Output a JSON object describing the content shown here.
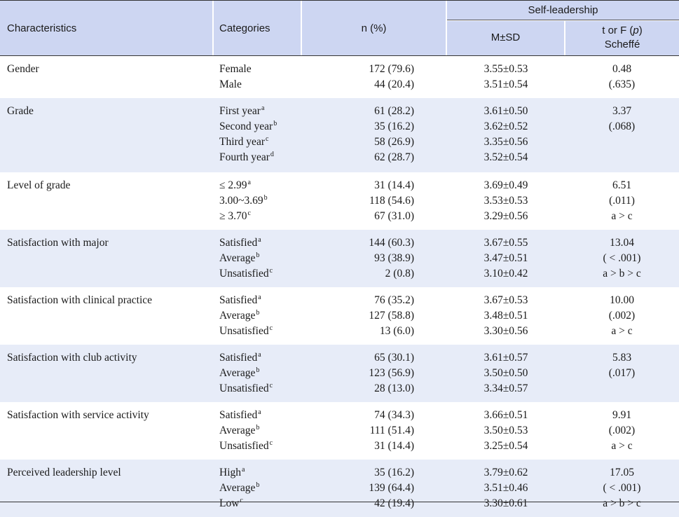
{
  "header": {
    "characteristics": "Characteristics",
    "categories": "Categories",
    "n_pct": "n (%)",
    "self_leadership": "Self-leadership",
    "msd": "M±SD",
    "t_or_f_pre": "t or F (",
    "t_or_f_p": "p",
    "t_or_f_post": ")",
    "scheffe": "Scheffé"
  },
  "groups": [
    {
      "characteristic": "Gender",
      "rows": [
        {
          "category": "Female",
          "sup": "",
          "n": "172 (79.6)",
          "msd": "3.55±0.53",
          "stat": "0.48"
        },
        {
          "category": "Male",
          "sup": "",
          "n": "44 (20.4)",
          "msd": "3.51±0.54",
          "stat": "(.635)"
        }
      ]
    },
    {
      "characteristic": "Grade",
      "rows": [
        {
          "category": "First year",
          "sup": "a",
          "n": "61 (28.2)",
          "msd": "3.61±0.50",
          "stat": "3.37"
        },
        {
          "category": "Second year",
          "sup": "b",
          "n": "35 (16.2)",
          "msd": "3.62±0.52",
          "stat": "(.068)"
        },
        {
          "category": "Third year",
          "sup": "c",
          "n": "58 (26.9)",
          "msd": "3.35±0.56",
          "stat": ""
        },
        {
          "category": "Fourth year",
          "sup": "d",
          "n": "62 (28.7)",
          "msd": "3.52±0.54",
          "stat": ""
        }
      ]
    },
    {
      "characteristic": "Level of grade",
      "rows": [
        {
          "category": "≤ 2.99",
          "sup": "a",
          "n": "31 (14.4)",
          "msd": "3.69±0.49",
          "stat": "6.51"
        },
        {
          "category": "3.00~3.69",
          "sup": "b",
          "n": "118 (54.6)",
          "msd": "3.53±0.53",
          "stat": "(.011)"
        },
        {
          "category": "≥ 3.70",
          "sup": "c",
          "n": "67 (31.0)",
          "msd": "3.29±0.56",
          "stat": "a > c"
        }
      ]
    },
    {
      "characteristic": "Satisfaction with major",
      "rows": [
        {
          "category": "Satisfied",
          "sup": "a",
          "n": "144 (60.3)",
          "msd": "3.67±0.55",
          "stat": "13.04"
        },
        {
          "category": "Average",
          "sup": "b",
          "n": "93 (38.9)",
          "msd": "3.47±0.51",
          "stat": "( < .001)"
        },
        {
          "category": "Unsatisfied",
          "sup": "c",
          "n": "2 (0.8)",
          "msd": "3.10±0.42",
          "stat": "a > b > c"
        }
      ]
    },
    {
      "characteristic": "Satisfaction with clinical practice",
      "rows": [
        {
          "category": "Satisfied",
          "sup": "a",
          "n": "76 (35.2)",
          "msd": "3.67±0.53",
          "stat": "10.00"
        },
        {
          "category": "Average",
          "sup": "b",
          "n": "127 (58.8)",
          "msd": "3.48±0.51",
          "stat": "(.002)"
        },
        {
          "category": "Unsatisfied",
          "sup": "c",
          "n": "13 (6.0)",
          "msd": "3.30±0.56",
          "stat": "a > c"
        }
      ]
    },
    {
      "characteristic": "Satisfaction with club activity",
      "rows": [
        {
          "category": "Satisfied",
          "sup": "a",
          "n": "65 (30.1)",
          "msd": "3.61±0.57",
          "stat": "5.83"
        },
        {
          "category": "Average",
          "sup": "b",
          "n": "123 (56.9)",
          "msd": "3.50±0.50",
          "stat": "(.017)"
        },
        {
          "category": "Unsatisfied",
          "sup": "c",
          "n": "28 (13.0)",
          "msd": "3.34±0.57",
          "stat": ""
        }
      ]
    },
    {
      "characteristic": "Satisfaction with service activity",
      "rows": [
        {
          "category": "Satisfied",
          "sup": "a",
          "n": "74 (34.3)",
          "msd": "3.66±0.51",
          "stat": "9.91"
        },
        {
          "category": "Average",
          "sup": "b",
          "n": "111 (51.4)",
          "msd": "3.50±0.53",
          "stat": "(.002)"
        },
        {
          "category": "Unsatisfied",
          "sup": "c",
          "n": "31 (14.4)",
          "msd": "3.25±0.54",
          "stat": "a > c"
        }
      ]
    },
    {
      "characteristic": "Perceived leadership level",
      "rows": [
        {
          "category": "High",
          "sup": "a",
          "n": "35 (16.2)",
          "msd": "3.79±0.62",
          "stat": "17.05"
        },
        {
          "category": "Average",
          "sup": "b",
          "n": "139 (64.4)",
          "msd": "3.51±0.46",
          "stat": "( < .001)"
        },
        {
          "category": "Low",
          "sup": "c",
          "n": "42 (19.4)",
          "msd": "3.30±0.61",
          "stat": "a > b > c"
        }
      ]
    }
  ]
}
